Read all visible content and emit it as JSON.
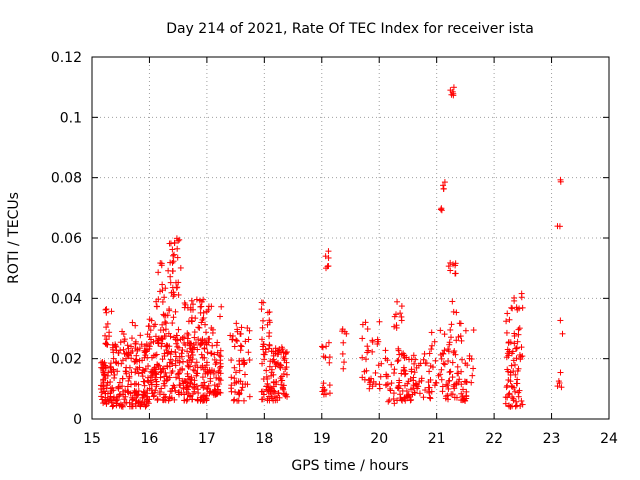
{
  "chart_data": {
    "type": "scatter",
    "title": "Day 214 of 2021, Rate Of TEC Index for receiver ista",
    "xlabel": "GPS time / hours",
    "ylabel": "ROTI / TECUs",
    "xlim": [
      15,
      24
    ],
    "ylim": [
      0,
      0.12
    ],
    "xticks": [
      "15",
      "16",
      "17",
      "18",
      "19",
      "20",
      "21",
      "22",
      "23",
      "24"
    ],
    "yticks": [
      "0",
      "0.02",
      "0.04",
      "0.06",
      "0.08",
      "0.1",
      "0.12"
    ],
    "grid": true,
    "marker": "+",
    "color": "#ff0000",
    "series": [
      {
        "name": "ROTI",
        "clusters": [
          {
            "x": [
              15.15,
              15.35
            ],
            "y": [
              0.005,
              0.02
            ],
            "n": 60
          },
          {
            "x": [
              15.2,
              15.35
            ],
            "y": [
              0.024,
              0.037
            ],
            "n": 14
          },
          {
            "x": [
              15.35,
              16.0
            ],
            "y": [
              0.004,
              0.025
            ],
            "n": 170
          },
          {
            "x": [
              15.5,
              16.0
            ],
            "y": [
              0.02,
              0.032
            ],
            "n": 25
          },
          {
            "x": [
              16.0,
              17.0
            ],
            "y": [
              0.006,
              0.028
            ],
            "n": 260
          },
          {
            "x": [
              16.0,
              17.0
            ],
            "y": [
              0.025,
              0.04
            ],
            "n": 70
          },
          {
            "x": [
              16.35,
              16.55
            ],
            "y": [
              0.04,
              0.06
            ],
            "n": 30
          },
          {
            "x": [
              16.1,
              16.35
            ],
            "y": [
              0.04,
              0.052
            ],
            "n": 10
          },
          {
            "x": [
              16.7,
              16.95
            ],
            "y": [
              0.032,
              0.04
            ],
            "n": 10
          },
          {
            "x": [
              17.0,
              17.25
            ],
            "y": [
              0.008,
              0.038
            ],
            "n": 70
          },
          {
            "x": [
              17.4,
              17.75
            ],
            "y": [
              0.006,
              0.032
            ],
            "n": 60
          },
          {
            "x": [
              17.95,
              18.4
            ],
            "y": [
              0.006,
              0.024
            ],
            "n": 110
          },
          {
            "x": [
              17.95,
              18.1
            ],
            "y": [
              0.024,
              0.04
            ],
            "n": 18
          },
          {
            "x": [
              19.0,
              19.15
            ],
            "y": [
              0.008,
              0.028
            ],
            "n": 18
          },
          {
            "x": [
              19.05,
              19.12
            ],
            "y": [
              0.05,
              0.056
            ],
            "n": 6
          },
          {
            "x": [
              19.35,
              19.45
            ],
            "y": [
              0.012,
              0.03
            ],
            "n": 8
          },
          {
            "x": [
              19.7,
              20.05
            ],
            "y": [
              0.01,
              0.034
            ],
            "n": 35
          },
          {
            "x": [
              20.1,
              20.45
            ],
            "y": [
              0.005,
              0.025
            ],
            "n": 50
          },
          {
            "x": [
              20.2,
              20.4
            ],
            "y": [
              0.03,
              0.04
            ],
            "n": 10
          },
          {
            "x": [
              20.45,
              20.9
            ],
            "y": [
              0.006,
              0.022
            ],
            "n": 60
          },
          {
            "x": [
              20.9,
              21.15
            ],
            "y": [
              0.008,
              0.032
            ],
            "n": 25
          },
          {
            "x": [
              21.05,
              21.1
            ],
            "y": [
              0.069,
              0.07
            ],
            "n": 3
          },
          {
            "x": [
              21.1,
              21.15
            ],
            "y": [
              0.076,
              0.079
            ],
            "n": 4
          },
          {
            "x": [
              21.2,
              21.35
            ],
            "y": [
              0.048,
              0.053
            ],
            "n": 8
          },
          {
            "x": [
              21.2,
              21.32
            ],
            "y": [
              0.107,
              0.11
            ],
            "n": 6
          },
          {
            "x": [
              21.15,
              21.65
            ],
            "y": [
              0.006,
              0.03
            ],
            "n": 70
          },
          {
            "x": [
              21.25,
              21.45
            ],
            "y": [
              0.03,
              0.04
            ],
            "n": 6
          },
          {
            "x": [
              22.2,
              22.5
            ],
            "y": [
              0.004,
              0.025
            ],
            "n": 60
          },
          {
            "x": [
              22.2,
              22.5
            ],
            "y": [
              0.025,
              0.044
            ],
            "n": 25
          },
          {
            "x": [
              23.1,
              23.2
            ],
            "y": [
              0.01,
              0.016
            ],
            "n": 5
          },
          {
            "x": [
              23.1,
              23.2
            ],
            "y": [
              0.024,
              0.036
            ],
            "n": 2
          },
          {
            "x": [
              23.1,
              23.18
            ],
            "y": [
              0.062,
              0.064
            ],
            "n": 2
          },
          {
            "x": [
              23.15,
              23.2
            ],
            "y": [
              0.076,
              0.08
            ],
            "n": 2
          }
        ]
      }
    ]
  }
}
